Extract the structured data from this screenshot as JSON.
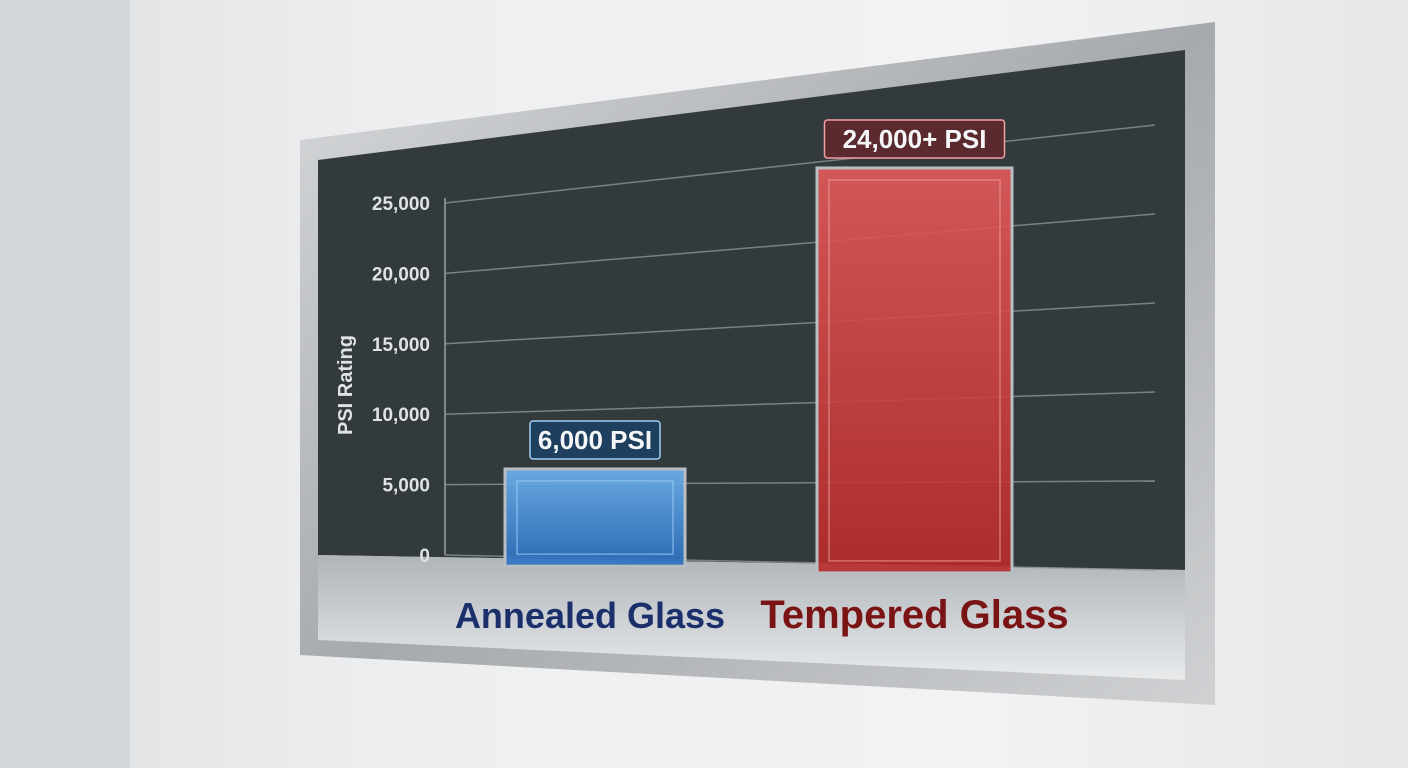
{
  "chart_data": {
    "type": "bar",
    "categories": [
      "Annealed Glass",
      "Tempered Glass"
    ],
    "values": [
      6000,
      24000
    ],
    "data_labels": [
      "6,000 PSI",
      "24,000+ PSI"
    ],
    "ylabel": "PSI Rating",
    "xlabel": "",
    "ylim": [
      0,
      25000
    ],
    "yticks": [
      0,
      5000,
      10000,
      15000,
      20000,
      25000
    ],
    "ytick_labels": [
      "0",
      "5,000",
      "10,000",
      "15,000",
      "20,000",
      "25,000"
    ],
    "grid": true,
    "colors": [
      "#3a8fe0",
      "#d63a3a"
    ],
    "category_label_colors": [
      "#1b2f6b",
      "#7a1414"
    ]
  }
}
